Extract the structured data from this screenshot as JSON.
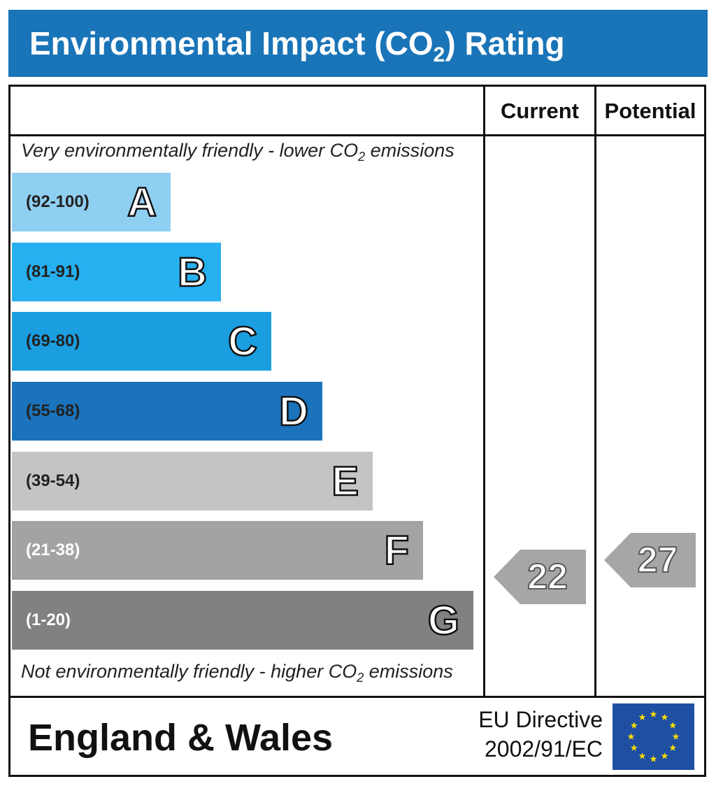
{
  "header": {
    "title_pre": "Environmental Impact (CO",
    "title_sub": "2",
    "title_post": ") Rating"
  },
  "columns": {
    "current": "Current",
    "potential": "Potential"
  },
  "captions": {
    "top_pre": "Very environmentally friendly - lower CO",
    "top_sub": "2",
    "top_post": " emissions",
    "bottom_pre": "Not environmentally friendly - higher CO",
    "bottom_sub": "2",
    "bottom_post": " emissions"
  },
  "chart_data": {
    "type": "bar",
    "categories": [
      "A",
      "B",
      "C",
      "D",
      "E",
      "F",
      "G"
    ],
    "bands": [
      {
        "letter": "A",
        "range": "(92-100)",
        "min": 92,
        "max": 100,
        "color": "#8fcff2",
        "text_color": "#222222"
      },
      {
        "letter": "B",
        "range": "(81-91)",
        "min": 81,
        "max": 91,
        "color": "#27b0f0",
        "text_color": "#222222"
      },
      {
        "letter": "C",
        "range": "(69-80)",
        "min": 69,
        "max": 80,
        "color": "#1a9ee0",
        "text_color": "#222222"
      },
      {
        "letter": "D",
        "range": "(55-68)",
        "min": 55,
        "max": 68,
        "color": "#1a73bb",
        "text_color": "#222222"
      },
      {
        "letter": "E",
        "range": "(39-54)",
        "min": 39,
        "max": 54,
        "color": "#c4c4c4",
        "text_color": "#222222"
      },
      {
        "letter": "F",
        "range": "(21-38)",
        "min": 21,
        "max": 38,
        "color": "#a3a3a3",
        "text_color": "#ffffff"
      },
      {
        "letter": "G",
        "range": "(1-20)",
        "min": 1,
        "max": 20,
        "color": "#818181",
        "text_color": "#ffffff"
      }
    ],
    "current": {
      "value": 22,
      "band": "F",
      "color": "#a6a6a6"
    },
    "potential": {
      "value": 27,
      "band": "F",
      "color": "#a6a6a6"
    }
  },
  "footer": {
    "region": "England & Wales",
    "directive_line1": "EU Directive",
    "directive_line2": "2002/91/EC",
    "flag_color": "#1f4fa3",
    "star_color": "#ffdd00"
  }
}
